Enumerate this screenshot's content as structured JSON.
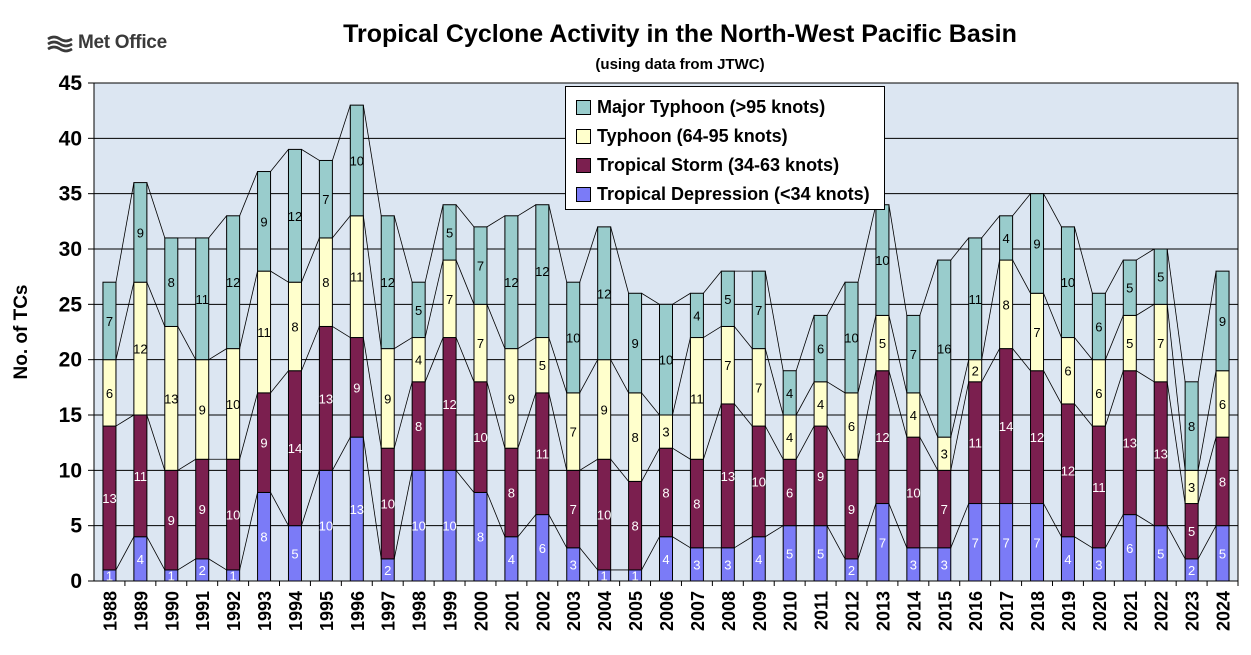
{
  "logo": {
    "text": "Met Office",
    "icon": "met-office-logo-icon"
  },
  "chart_data": {
    "type": "bar",
    "stacked": true,
    "title": "Tropical Cyclone Activity in the North-West Pacific Basin",
    "subtitle": "(using data from JTWC)",
    "ylabel": "No. of TCs",
    "xlabel": "",
    "ylim": [
      0,
      45
    ],
    "yticks": [
      0,
      5,
      10,
      15,
      20,
      25,
      30,
      35,
      40,
      45
    ],
    "grid": true,
    "legend_position": "top-center",
    "background_color": "#dce6f2",
    "categories": [
      "1988",
      "1989",
      "1990",
      "1991",
      "1992",
      "1993",
      "1994",
      "1995",
      "1996",
      "1997",
      "1998",
      "1999",
      "2000",
      "2001",
      "2002",
      "2003",
      "2004",
      "2005",
      "2006",
      "2007",
      "2008",
      "2009",
      "2010",
      "2011",
      "2012",
      "2013",
      "2014",
      "2015",
      "2016",
      "2017",
      "2018",
      "2019",
      "2020",
      "2021",
      "2022",
      "2023",
      "2024"
    ],
    "series": [
      {
        "name": "Tropical Depression (<34 knots)",
        "color": "#7b7bf7",
        "label_color": "#ffffff",
        "values": [
          1,
          4,
          1,
          2,
          1,
          8,
          5,
          10,
          13,
          2,
          10,
          10,
          8,
          4,
          6,
          3,
          1,
          1,
          4,
          3,
          3,
          4,
          5,
          5,
          2,
          7,
          3,
          3,
          7,
          7,
          7,
          4,
          3,
          6,
          5,
          2,
          5
        ]
      },
      {
        "name": "Tropical Storm (34-63 knots)",
        "color": "#7b1f4f",
        "label_color": "#ffffff",
        "values": [
          13,
          11,
          9,
          9,
          10,
          9,
          14,
          13,
          9,
          10,
          8,
          12,
          10,
          8,
          11,
          7,
          10,
          8,
          8,
          8,
          13,
          10,
          6,
          9,
          9,
          12,
          10,
          7,
          11,
          14,
          12,
          12,
          11,
          13,
          13,
          5,
          8
        ]
      },
      {
        "name": "Typhoon (64-95 knots)",
        "color": "#ffffcc",
        "label_color": "#000000",
        "values": [
          6,
          12,
          13,
          9,
          10,
          11,
          8,
          8,
          11,
          9,
          4,
          7,
          7,
          9,
          5,
          7,
          9,
          8,
          3,
          11,
          7,
          7,
          4,
          4,
          6,
          5,
          4,
          3,
          2,
          8,
          7,
          6,
          6,
          5,
          7,
          3,
          6
        ]
      },
      {
        "name": "Major Typhoon (>95 knots)",
        "color": "#99cccc",
        "label_color": "#000000",
        "values": [
          7,
          9,
          8,
          11,
          12,
          9,
          12,
          7,
          10,
          12,
          5,
          5,
          7,
          12,
          12,
          10,
          12,
          9,
          10,
          4,
          5,
          7,
          4,
          6,
          10,
          10,
          7,
          16,
          11,
          4,
          9,
          10,
          6,
          5,
          5,
          8,
          9
        ]
      }
    ],
    "totals": [
      27,
      36,
      31,
      31,
      33,
      37,
      39,
      38,
      43,
      33,
      27,
      34,
      32,
      33,
      34,
      27,
      32,
      26,
      25,
      26,
      28,
      28,
      19,
      24,
      27,
      34,
      24,
      29,
      31,
      33,
      35,
      32,
      26,
      29,
      30,
      18,
      28
    ],
    "legend_order": [
      "Major Typhoon (>95 knots)",
      "Typhoon (64-95 knots)",
      "Tropical Storm (34-63 knots)",
      "Tropical Depression (<34 knots)"
    ]
  }
}
